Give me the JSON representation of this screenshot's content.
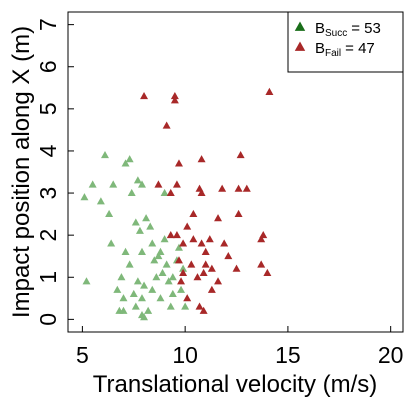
{
  "chart_data": {
    "type": "scatter",
    "xlabel": "Translational velocity (m/s)",
    "ylabel": "Impact position along X (m)",
    "xlim": [
      4.3,
      20.6
    ],
    "ylim": [
      -0.3,
      7.3
    ],
    "xticks": [
      "5",
      "10",
      "15",
      "20"
    ],
    "yticks": [
      "0",
      "1",
      "2",
      "3",
      "4",
      "5",
      "6",
      "7"
    ],
    "grid": false,
    "legend_position": "top-right",
    "legend": [
      {
        "base": "B",
        "sub": "Succ",
        "suffix": "= 53",
        "color": "#1a6e1a"
      },
      {
        "base": "B",
        "sub": "Fail",
        "suffix": "= 47",
        "color": "#a82828"
      }
    ],
    "series": [
      {
        "marker": "triangle",
        "color": "#7fb87a",
        "points": [
          [
            6.1,
            3.9
          ],
          [
            7.3,
            3.8
          ],
          [
            7.1,
            3.7
          ],
          [
            5.5,
            3.2
          ],
          [
            6.5,
            3.2
          ],
          [
            7.7,
            3.3
          ],
          [
            7.9,
            3.2
          ],
          [
            5.1,
            2.9
          ],
          [
            5.9,
            2.8
          ],
          [
            7.4,
            3.0
          ],
          [
            9.0,
            3.0
          ],
          [
            6.3,
            2.5
          ],
          [
            8.1,
            2.4
          ],
          [
            8.3,
            2.2
          ],
          [
            7.8,
            2.1
          ],
          [
            9.0,
            1.9
          ],
          [
            8.4,
            1.8
          ],
          [
            6.4,
            1.8
          ],
          [
            7.1,
            1.6
          ],
          [
            7.9,
            1.6
          ],
          [
            8.8,
            1.6
          ],
          [
            9.7,
            1.7
          ],
          [
            8.5,
            1.4
          ],
          [
            9.1,
            1.3
          ],
          [
            9.9,
            1.2
          ],
          [
            7.3,
            1.3
          ],
          [
            5.2,
            0.9
          ],
          [
            7.7,
            0.9
          ],
          [
            8.0,
            0.8
          ],
          [
            8.6,
            1.0
          ],
          [
            9.4,
            1.0
          ],
          [
            9.8,
            0.7
          ],
          [
            6.7,
            0.7
          ],
          [
            7.5,
            0.6
          ],
          [
            7.9,
            0.5
          ],
          [
            8.8,
            0.5
          ],
          [
            9.4,
            0.6
          ],
          [
            9.3,
            0.3
          ],
          [
            10.0,
            0.3
          ],
          [
            6.8,
            0.2
          ],
          [
            7.0,
            0.2
          ],
          [
            7.6,
            0.3
          ],
          [
            8.2,
            0.2
          ],
          [
            7.9,
            0.1
          ],
          [
            8.0,
            0.05
          ],
          [
            7.0,
            0.5
          ],
          [
            8.9,
            1.1
          ],
          [
            9.2,
            0.9
          ],
          [
            6.9,
            1.0
          ],
          [
            8.4,
            0.7
          ],
          [
            9.6,
            1.4
          ],
          [
            7.6,
            2.3
          ],
          [
            8.7,
            1.5
          ]
        ]
      },
      {
        "marker": "triangle",
        "color": "#a82828",
        "points": [
          [
            8.0,
            5.3
          ],
          [
            9.5,
            5.3
          ],
          [
            9.5,
            5.2
          ],
          [
            14.1,
            5.4
          ],
          [
            9.1,
            4.6
          ],
          [
            12.7,
            3.9
          ],
          [
            9.7,
            3.7
          ],
          [
            10.8,
            3.8
          ],
          [
            8.7,
            3.2
          ],
          [
            9.6,
            3.2
          ],
          [
            9.3,
            3.0
          ],
          [
            10.7,
            3.1
          ],
          [
            10.8,
            3.0
          ],
          [
            11.8,
            3.1
          ],
          [
            12.6,
            3.1
          ],
          [
            13.0,
            3.1
          ],
          [
            10.4,
            2.5
          ],
          [
            11.6,
            2.4
          ],
          [
            12.6,
            2.5
          ],
          [
            9.3,
            2.0
          ],
          [
            9.6,
            2.0
          ],
          [
            9.9,
            1.8
          ],
          [
            10.4,
            1.9
          ],
          [
            10.8,
            1.8
          ],
          [
            11.2,
            1.9
          ],
          [
            11.9,
            1.8
          ],
          [
            13.8,
            2.0
          ],
          [
            13.7,
            1.9
          ],
          [
            9.7,
            1.4
          ],
          [
            10.3,
            1.3
          ],
          [
            11.0,
            1.3
          ],
          [
            11.3,
            1.2
          ],
          [
            9.9,
            1.1
          ],
          [
            10.6,
            1.0
          ],
          [
            10.9,
            1.1
          ],
          [
            12.5,
            1.2
          ],
          [
            14.0,
            1.1
          ],
          [
            13.7,
            1.3
          ],
          [
            10.1,
            0.5
          ],
          [
            11.3,
            0.7
          ],
          [
            10.7,
            0.3
          ],
          [
            10.9,
            0.2
          ],
          [
            12.1,
            1.5
          ],
          [
            11.6,
            0.9
          ],
          [
            9.8,
            0.9
          ],
          [
            11.0,
            1.6
          ],
          [
            10.1,
            2.2
          ]
        ]
      }
    ]
  }
}
